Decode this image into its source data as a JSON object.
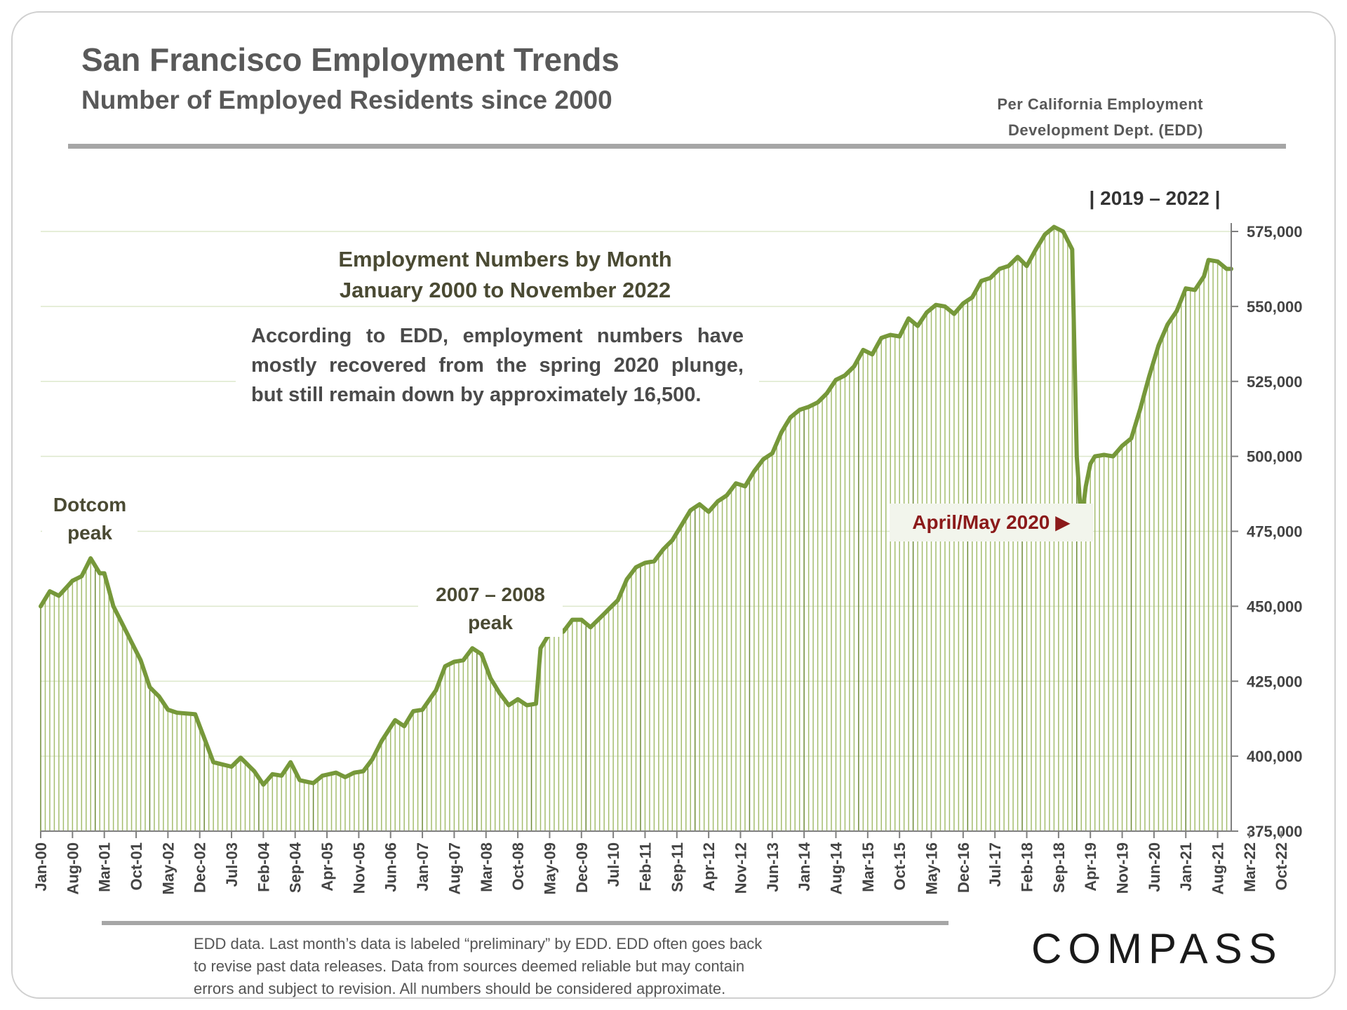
{
  "header": {
    "title": "San Francisco Employment Trends",
    "subtitle": "Number of Employed Residents since 2000",
    "source_line1": "Per California Employment",
    "source_line2": "Development Dept. (EDD)"
  },
  "annotations": {
    "chart_heading_1": "Employment Numbers by Month",
    "chart_heading_2": "January 2000 to November 2022",
    "note_line1": "According to EDD, employment numbers have",
    "note_line2": "mostly recovered from the spring 2020 plunge,",
    "note_line3": "but still remain down by approximately 16,500.",
    "dotcom_1": "Dotcom",
    "dotcom_2": "peak",
    "gfc_1": "2007 – 2008",
    "gfc_2": "peak",
    "covid": "April/May 2020 ▶",
    "range_label": "2019 – 2022"
  },
  "footer": {
    "line1": "EDD data. Last month’s data is labeled “preliminary” by EDD. EDD often goes back",
    "line2": "to revise past data releases. Data from sources deemed reliable but may contain",
    "line3": "errors and subject to revision. All numbers should be considered approximate.",
    "logo": "COMPASS"
  },
  "colors": {
    "line": "#76983a",
    "bar": "#a4bd6e",
    "bar_dark": "#6d8a37",
    "covid_text": "#8b1a1a",
    "grid": "#dde8cc"
  },
  "chart_data": {
    "type": "bar",
    "title": "Employment Numbers by Month",
    "subtitle": "January 2000 to November 2022",
    "ylim": [
      375000,
      575000
    ],
    "yticks": [
      375000,
      400000,
      425000,
      450000,
      475000,
      500000,
      525000,
      550000,
      575000
    ],
    "ytick_labels": [
      "375,000",
      "400,000",
      "425,000",
      "450,000",
      "475,000",
      "500,000",
      "525,000",
      "550,000",
      "575,000"
    ],
    "xtick_labels": [
      "Jan-00",
      "Aug-00",
      "Mar-01",
      "Oct-01",
      "May-02",
      "Dec-02",
      "Jul-03",
      "Feb-04",
      "Sep-04",
      "Apr-05",
      "Nov-05",
      "Jun-06",
      "Jan-07",
      "Aug-07",
      "Mar-08",
      "Oct-08",
      "May-09",
      "Dec-09",
      "Jul-10",
      "Feb-11",
      "Sep-11",
      "Apr-12",
      "Nov-12",
      "Jun-13",
      "Jan-14",
      "Aug-14",
      "Mar-15",
      "Oct-15",
      "May-16",
      "Dec-16",
      "Jul-17",
      "Feb-18",
      "Sep-18",
      "Apr-19",
      "Nov-19",
      "Jun-20",
      "Jan-21",
      "Aug-21",
      "Mar-22",
      "Oct-22"
    ],
    "start": "2000-01",
    "end": "2022-11",
    "anchors": [
      [
        0,
        450000
      ],
      [
        2,
        455000
      ],
      [
        4,
        453500
      ],
      [
        7,
        458500
      ],
      [
        9,
        460000
      ],
      [
        11,
        466000
      ],
      [
        13,
        461000
      ],
      [
        14,
        461000
      ],
      [
        16,
        450000
      ],
      [
        19,
        441000
      ],
      [
        22,
        432000
      ],
      [
        24,
        423000
      ],
      [
        26,
        420000
      ],
      [
        28,
        415500
      ],
      [
        30,
        414500
      ],
      [
        34,
        414000
      ],
      [
        36,
        406000
      ],
      [
        38,
        398000
      ],
      [
        42,
        396500
      ],
      [
        44,
        399500
      ],
      [
        47,
        395000
      ],
      [
        49,
        390500
      ],
      [
        51,
        394000
      ],
      [
        53,
        393500
      ],
      [
        55,
        398000
      ],
      [
        57,
        392000
      ],
      [
        60,
        391000
      ],
      [
        62,
        393500
      ],
      [
        65,
        394500
      ],
      [
        67,
        393000
      ],
      [
        69,
        394500
      ],
      [
        71,
        395000
      ],
      [
        73,
        399000
      ],
      [
        75,
        405000
      ],
      [
        78,
        412000
      ],
      [
        80,
        410000
      ],
      [
        82,
        415000
      ],
      [
        84,
        415500
      ],
      [
        87,
        422000
      ],
      [
        89,
        430000
      ],
      [
        91,
        431500
      ],
      [
        93,
        432000
      ],
      [
        95,
        436000
      ],
      [
        97,
        434000
      ],
      [
        99,
        426000
      ],
      [
        101,
        421000
      ],
      [
        103,
        417000
      ],
      [
        105,
        419000
      ],
      [
        107,
        417000
      ],
      [
        109,
        417500
      ],
      [
        110,
        436000
      ],
      [
        112,
        441000
      ],
      [
        114,
        443000
      ],
      [
        115,
        441500
      ],
      [
        117,
        445500
      ],
      [
        119,
        445500
      ],
      [
        121,
        443000
      ],
      [
        123,
        446000
      ],
      [
        125,
        449000
      ],
      [
        127,
        452000
      ],
      [
        129,
        459000
      ],
      [
        131,
        463000
      ],
      [
        133,
        464500
      ],
      [
        135,
        465000
      ],
      [
        137,
        469000
      ],
      [
        139,
        472000
      ],
      [
        141,
        477000
      ],
      [
        143,
        482000
      ],
      [
        145,
        484000
      ],
      [
        147,
        481500
      ],
      [
        149,
        485000
      ],
      [
        151,
        487000
      ],
      [
        153,
        491000
      ],
      [
        155,
        490000
      ],
      [
        157,
        495000
      ],
      [
        159,
        499000
      ],
      [
        161,
        501000
      ],
      [
        163,
        508000
      ],
      [
        165,
        513000
      ],
      [
        167,
        515500
      ],
      [
        169,
        516500
      ],
      [
        171,
        518000
      ],
      [
        173,
        521000
      ],
      [
        175,
        525500
      ],
      [
        177,
        527000
      ],
      [
        179,
        530000
      ],
      [
        181,
        535500
      ],
      [
        183,
        534000
      ],
      [
        185,
        539500
      ],
      [
        187,
        540500
      ],
      [
        189,
        540000
      ],
      [
        191,
        546000
      ],
      [
        193,
        543500
      ],
      [
        195,
        548000
      ],
      [
        197,
        550500
      ],
      [
        199,
        550000
      ],
      [
        201,
        547500
      ],
      [
        203,
        551000
      ],
      [
        205,
        553000
      ],
      [
        207,
        558500
      ],
      [
        209,
        559500
      ],
      [
        211,
        562500
      ],
      [
        213,
        563500
      ],
      [
        215,
        566500
      ],
      [
        217,
        563500
      ],
      [
        219,
        569000
      ],
      [
        221,
        574000
      ],
      [
        223,
        576500
      ],
      [
        225,
        575000
      ],
      [
        226,
        572000
      ],
      [
        227,
        569000
      ],
      [
        228,
        500000
      ],
      [
        229,
        478000
      ],
      [
        230,
        490000
      ],
      [
        231,
        497500
      ],
      [
        232,
        500000
      ],
      [
        234,
        500500
      ],
      [
        236,
        500000
      ],
      [
        238,
        503500
      ],
      [
        240,
        506000
      ],
      [
        242,
        516000
      ],
      [
        244,
        527000
      ],
      [
        246,
        537000
      ],
      [
        248,
        544000
      ],
      [
        250,
        548500
      ],
      [
        252,
        556000
      ],
      [
        254,
        555500
      ],
      [
        256,
        560000
      ],
      [
        257,
        565500
      ],
      [
        259,
        565000
      ],
      [
        261,
        562500
      ]
    ]
  }
}
